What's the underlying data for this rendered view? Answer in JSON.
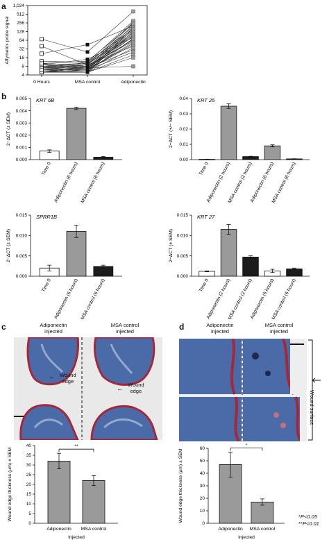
{
  "panel_labels": {
    "a": "a",
    "b": "b",
    "c": "c",
    "d": "d"
  },
  "panel_c": {
    "col_left": [
      "Adiponectin",
      "injected"
    ],
    "col_right": [
      "MSA control",
      "injected"
    ],
    "arrow_label": [
      "Wound",
      "edge"
    ],
    "arrow_label2": [
      "Wound",
      "edge"
    ]
  },
  "panel_d": {
    "col_left": [
      "Adiponectin",
      "injected"
    ],
    "col_right": [
      "MSA control",
      "injected"
    ],
    "side_label": "Wound surface"
  },
  "footnote": {
    "line1_star": "*",
    "line1": "P<0.05",
    "line2_star": "**",
    "line2": "P<0.01"
  },
  "colors": {
    "grey_bar": "#9a9a9a",
    "black_bar": "#1c1c1c",
    "white_bar": "#ffffff",
    "stain_blue": "#4a6aa8",
    "stain_red": "#a4283a"
  },
  "chart_data": [
    {
      "id": "a",
      "type": "line",
      "ylabel": "Affymetrix probe signal",
      "y_scale": "log2",
      "y_ticks": [
        4,
        8,
        16,
        32,
        64,
        128,
        256,
        512,
        1024
      ],
      "y_tick_labels": [
        "4",
        "8",
        "16",
        "32",
        "64",
        "128",
        "256",
        "512",
        "1,024"
      ],
      "categories": [
        "0 Hours",
        "MSA control",
        "Adiponectin"
      ],
      "series_values": [
        [
          70,
          25,
          640
        ],
        [
          40,
          9,
          270
        ],
        [
          22,
          45,
          200
        ],
        [
          12,
          11,
          160
        ],
        [
          10,
          8,
          120
        ],
        [
          9,
          10,
          95
        ],
        [
          9,
          14,
          80
        ],
        [
          8,
          7,
          260
        ],
        [
          8,
          9,
          140
        ],
        [
          8,
          8,
          60
        ],
        [
          7,
          6,
          50
        ],
        [
          7,
          7,
          100
        ],
        [
          7,
          9,
          40
        ],
        [
          6,
          7,
          30
        ],
        [
          6,
          6,
          90
        ],
        [
          6,
          5,
          75
        ],
        [
          6,
          7,
          110
        ],
        [
          5,
          6,
          25
        ],
        [
          5,
          5,
          180
        ],
        [
          5,
          6,
          150
        ],
        [
          5,
          8,
          65
        ],
        [
          5,
          5,
          35
        ],
        [
          5,
          7,
          8
        ],
        [
          5,
          6,
          45
        ],
        [
          5,
          5,
          130
        ],
        [
          5,
          6,
          220
        ],
        [
          6,
          6,
          55
        ],
        [
          7,
          8,
          85
        ],
        [
          9,
          7,
          70
        ],
        [
          8,
          10,
          190
        ],
        [
          6,
          9,
          160
        ],
        [
          7,
          11,
          300
        ],
        [
          10,
          12,
          240
        ],
        [
          5,
          5,
          20
        ],
        [
          6,
          5,
          16
        ]
      ]
    },
    {
      "id": "b1",
      "type": "bar",
      "gene": "KRT 6B",
      "ylabel": "2−ΔCT (± SEM)",
      "ylim": [
        0,
        0.005
      ],
      "y_ticks": [
        0,
        0.001,
        0.002,
        0.003,
        0.004,
        0.005
      ],
      "y_tick_labels": [
        "0.000",
        "0.001",
        "0.002",
        "0.003",
        "0.004",
        "0.005"
      ],
      "categories": [
        "Time 0",
        "Adiponectin (6 hours)",
        "MSA control (6 hours)"
      ],
      "values": [
        0.0007,
        0.0042,
        0.0002
      ],
      "errors": [
        0.0001,
        0.0001,
        5e-05
      ],
      "colors": [
        "white",
        "grey",
        "black"
      ]
    },
    {
      "id": "b2",
      "type": "bar",
      "gene": "KRT 25",
      "ylabel": "2−ΔCT (+/− SEM)",
      "ylim": [
        0,
        0.04
      ],
      "y_ticks": [
        0,
        0.01,
        0.02,
        0.03,
        0.04
      ],
      "y_tick_labels": [
        "0.00",
        "0.01",
        "0.02",
        "0.03",
        "0.04"
      ],
      "categories": [
        "Time 0",
        "Adiponectin (2 hours)",
        "MSA control (2 hours)",
        "Adiponectin (6 hours)",
        "MSA control (6 hours)"
      ],
      "values": [
        0.0002,
        0.035,
        0.002,
        0.009,
        0.0005
      ],
      "errors": [
        0.0001,
        0.0015,
        0.0002,
        0.0007,
        0.0001
      ],
      "colors": [
        "white",
        "grey",
        "black",
        "grey",
        "black"
      ]
    },
    {
      "id": "b3",
      "type": "bar",
      "gene": "SPRR1B",
      "ylabel": "2−ΔCT (± SEM)",
      "ylim": [
        0,
        0.015
      ],
      "y_ticks": [
        0,
        0.005,
        0.01,
        0.015
      ],
      "y_tick_labels": [
        "0.000",
        "0.005",
        "0.010",
        "0.015"
      ],
      "categories": [
        "Time 0",
        "Adiponectin (6 hours)",
        "MSA control (6 hours)"
      ],
      "values": [
        0.002,
        0.011,
        0.0024
      ],
      "errors": [
        0.0007,
        0.0015,
        0.0003
      ],
      "colors": [
        "white",
        "grey",
        "black"
      ]
    },
    {
      "id": "b4",
      "type": "bar",
      "gene": "KRT 27",
      "ylabel": "2−ΔCT (± SEM)",
      "ylim": [
        0,
        0.015
      ],
      "y_ticks": [
        0,
        0.005,
        0.01,
        0.015
      ],
      "y_tick_labels": [
        "0.000",
        "0.005",
        "0.010",
        "0.015"
      ],
      "categories": [
        "Time 0",
        "Adiponectin (2 hours)",
        "MSA control (2 hours)",
        "Adiponectin (6 hours)",
        "MSA control (6 hours)"
      ],
      "values": [
        0.0012,
        0.0115,
        0.0047,
        0.0013,
        0.0018
      ],
      "errors": [
        0.0001,
        0.0012,
        0.0003,
        0.0004,
        0.0002
      ],
      "colors": [
        "white",
        "grey",
        "black",
        "white",
        "black"
      ]
    },
    {
      "id": "c",
      "type": "bar",
      "ylabel": "Wound edge thickness (μm) ± SEM",
      "ylim": [
        0,
        40
      ],
      "y_ticks": [
        0,
        5,
        10,
        15,
        20,
        25,
        30,
        35,
        40
      ],
      "y_tick_labels": [
        "0",
        "5",
        "10",
        "15",
        "20",
        "25",
        "30",
        "35",
        "40"
      ],
      "categories": [
        "Adiponectin",
        "MSA control"
      ],
      "xlabel": "Injected",
      "values": [
        32,
        22
      ],
      "errors": [
        4,
        2.5
      ],
      "significance": "**"
    },
    {
      "id": "d",
      "type": "bar",
      "ylabel": "Wound edge thickness (μm) ± SEM",
      "ylim": [
        0,
        60
      ],
      "y_ticks": [
        0,
        10,
        20,
        30,
        40,
        50,
        60
      ],
      "y_tick_labels": [
        "0",
        "10",
        "20",
        "30",
        "40",
        "50",
        "60"
      ],
      "categories": [
        "Adiponectin",
        "MSA control"
      ],
      "xlabel": "Injected",
      "values": [
        47,
        17
      ],
      "errors": [
        10,
        2.5
      ],
      "significance": "*"
    }
  ]
}
